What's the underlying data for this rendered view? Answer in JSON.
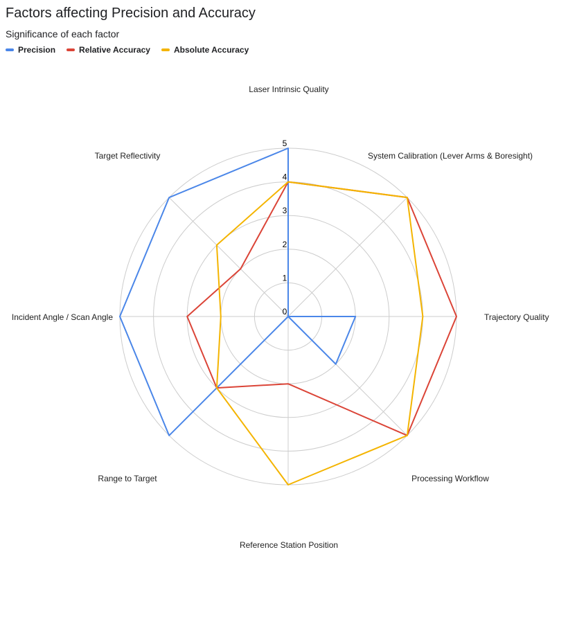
{
  "chart_data": {
    "type": "radar",
    "title": "Factors affecting Precision and Accuracy",
    "subtitle": "Significance of each factor",
    "categories": [
      "Laser Intrinsic Quality",
      "System Calibration (Lever Arms &  Boresight)",
      "Trajectory Quality",
      "Processing Workflow",
      "Reference Station Position",
      "Range to Target",
      "Incident Angle / Scan Angle",
      "Target Reflectivity"
    ],
    "rlim": [
      0,
      5
    ],
    "ticks": [
      "0",
      "1",
      "2",
      "3",
      "4",
      "5"
    ],
    "legend_position": "top-left",
    "grid": true,
    "series": [
      {
        "name": "Precision",
        "color": "#4a86e8",
        "values": [
          5,
          0,
          2,
          2,
          0,
          5,
          5,
          5
        ]
      },
      {
        "name": "Relative Accuracy",
        "color": "#db4437",
        "values": [
          4,
          5,
          5,
          5,
          2,
          3,
          3,
          2
        ]
      },
      {
        "name": "Absolute Accuracy",
        "color": "#f4b400",
        "values": [
          4,
          5,
          4,
          5,
          5,
          3,
          2,
          3
        ]
      }
    ]
  }
}
